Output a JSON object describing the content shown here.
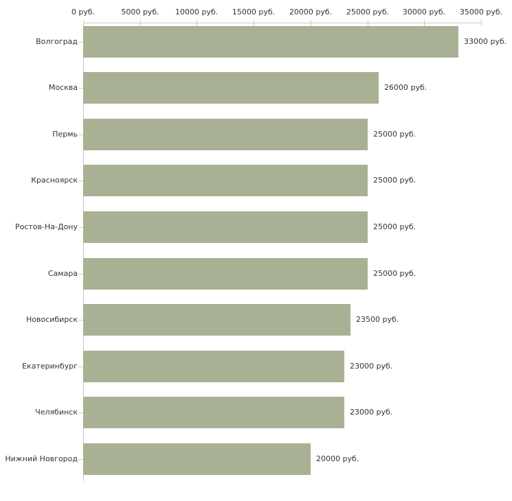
{
  "chart_data": {
    "type": "bar",
    "orientation": "horizontal",
    "title": "",
    "xlabel": "",
    "ylabel": "",
    "categories": [
      "Волгоград",
      "Москва",
      "Пермь",
      "Красноярск",
      "Ростов-На-Дону",
      "Самара",
      "Новосибирск",
      "Екатеринбург",
      "Челябинск",
      "Нижний Новгород"
    ],
    "values": [
      33000,
      26000,
      25000,
      25000,
      25000,
      25000,
      23500,
      23000,
      23000,
      20000
    ],
    "value_labels": [
      "33000 руб.",
      "26000 руб.",
      "25000 руб.",
      "25000 руб.",
      "25000 руб.",
      "25000 руб.",
      "23500 руб.",
      "23000 руб.",
      "23000 руб.",
      "20000 руб."
    ],
    "x_axis": {
      "position": "top",
      "min": 0,
      "max": 35000,
      "tick_step": 5000,
      "tick_labels": [
        "0 руб.",
        "5000 руб.",
        "10000 руб.",
        "15000 руб.",
        "20000 руб.",
        "25000 руб.",
        "30000 руб.",
        "35000 руб."
      ]
    },
    "grid": false,
    "legend": false,
    "colors": {
      "bar": "#a8b193",
      "axis_line": "#c8c8c8",
      "tick_mark": "#ccd1a0",
      "text": "#333333",
      "background": "#ffffff"
    }
  }
}
